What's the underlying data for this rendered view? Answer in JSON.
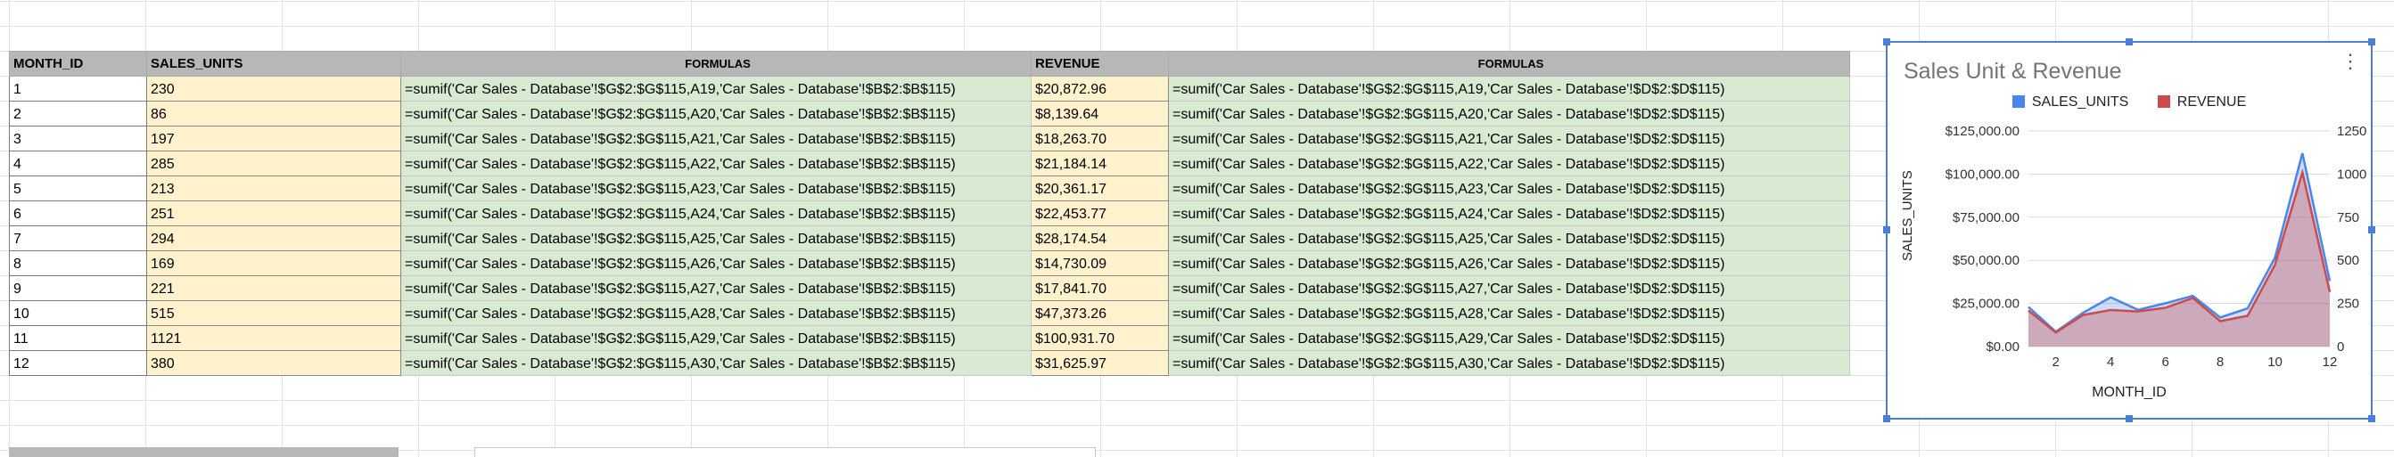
{
  "headers": {
    "month_id": "MONTH_ID",
    "sales_units": "SALES_UNITS",
    "formulas1": "FORMULAS",
    "revenue": "REVENUE",
    "formulas2": "FORMULAS"
  },
  "rows": [
    {
      "id": "1",
      "units": "230",
      "f1": "=sumif('Car Sales - Database'!$G$2:$G$115,A19,'Car Sales - Database'!$B$2:$B$115)",
      "rev": "$20,872.96",
      "f2": "=sumif('Car Sales - Database'!$G$2:$G$115,A19,'Car Sales - Database'!$D$2:$D$115)"
    },
    {
      "id": "2",
      "units": "86",
      "f1": "=sumif('Car Sales - Database'!$G$2:$G$115,A20,'Car Sales - Database'!$B$2:$B$115)",
      "rev": "$8,139.64",
      "f2": "=sumif('Car Sales - Database'!$G$2:$G$115,A20,'Car Sales - Database'!$D$2:$D$115)"
    },
    {
      "id": "3",
      "units": "197",
      "f1": "=sumif('Car Sales - Database'!$G$2:$G$115,A21,'Car Sales - Database'!$B$2:$B$115)",
      "rev": "$18,263.70",
      "f2": "=sumif('Car Sales - Database'!$G$2:$G$115,A21,'Car Sales - Database'!$D$2:$D$115)"
    },
    {
      "id": "4",
      "units": "285",
      "f1": "=sumif('Car Sales - Database'!$G$2:$G$115,A22,'Car Sales - Database'!$B$2:$B$115)",
      "rev": "$21,184.14",
      "f2": "=sumif('Car Sales - Database'!$G$2:$G$115,A22,'Car Sales - Database'!$D$2:$D$115)"
    },
    {
      "id": "5",
      "units": "213",
      "f1": "=sumif('Car Sales - Database'!$G$2:$G$115,A23,'Car Sales - Database'!$B$2:$B$115)",
      "rev": "$20,361.17",
      "f2": "=sumif('Car Sales - Database'!$G$2:$G$115,A23,'Car Sales - Database'!$D$2:$D$115)"
    },
    {
      "id": "6",
      "units": "251",
      "f1": "=sumif('Car Sales - Database'!$G$2:$G$115,A24,'Car Sales - Database'!$B$2:$B$115)",
      "rev": "$22,453.77",
      "f2": "=sumif('Car Sales - Database'!$G$2:$G$115,A24,'Car Sales - Database'!$D$2:$D$115)"
    },
    {
      "id": "7",
      "units": "294",
      "f1": "=sumif('Car Sales - Database'!$G$2:$G$115,A25,'Car Sales - Database'!$B$2:$B$115)",
      "rev": "$28,174.54",
      "f2": "=sumif('Car Sales - Database'!$G$2:$G$115,A25,'Car Sales - Database'!$D$2:$D$115)"
    },
    {
      "id": "8",
      "units": "169",
      "f1": "=sumif('Car Sales - Database'!$G$2:$G$115,A26,'Car Sales - Database'!$B$2:$B$115)",
      "rev": "$14,730.09",
      "f2": "=sumif('Car Sales - Database'!$G$2:$G$115,A26,'Car Sales - Database'!$D$2:$D$115)"
    },
    {
      "id": "9",
      "units": "221",
      "f1": "=sumif('Car Sales - Database'!$G$2:$G$115,A27,'Car Sales - Database'!$B$2:$B$115)",
      "rev": "$17,841.70",
      "f2": "=sumif('Car Sales - Database'!$G$2:$G$115,A27,'Car Sales - Database'!$D$2:$D$115)"
    },
    {
      "id": "10",
      "units": "515",
      "f1": "=sumif('Car Sales - Database'!$G$2:$G$115,A28,'Car Sales - Database'!$B$2:$B$115)",
      "rev": "$47,373.26",
      "f2": "=sumif('Car Sales - Database'!$G$2:$G$115,A28,'Car Sales - Database'!$D$2:$D$115)"
    },
    {
      "id": "11",
      "units": "1121",
      "f1": "=sumif('Car Sales - Database'!$G$2:$G$115,A29,'Car Sales - Database'!$B$2:$B$115)",
      "rev": "$100,931.70",
      "f2": "=sumif('Car Sales - Database'!$G$2:$G$115,A29,'Car Sales - Database'!$D$2:$D$115)"
    },
    {
      "id": "12",
      "units": "380",
      "f1": "=sumif('Car Sales - Database'!$G$2:$G$115,A30,'Car Sales - Database'!$B$2:$B$115)",
      "rev": "$31,625.97",
      "f2": "=sumif('Car Sales - Database'!$G$2:$G$115,A30,'Car Sales - Database'!$D$2:$D$115)"
    }
  ],
  "chart_menu_icon": "more-vert-icon",
  "chart_data": {
    "type": "area",
    "title": "Sales Unit & Revenue",
    "xlabel": "MONTH_ID",
    "ylabel": "SALES_UNITS",
    "x": [
      1,
      2,
      3,
      4,
      5,
      6,
      7,
      8,
      9,
      10,
      11,
      12
    ],
    "xticks": [
      "2",
      "4",
      "6",
      "8",
      "10",
      "12"
    ],
    "xlim": [
      1,
      12
    ],
    "legend_position": "top",
    "series": [
      {
        "name": "SALES_UNITS",
        "axis": "right",
        "color": "#4a86e8",
        "values": [
          230,
          86,
          197,
          285,
          213,
          251,
          294,
          169,
          221,
          515,
          1121,
          380
        ]
      },
      {
        "name": "REVENUE",
        "axis": "left",
        "color": "#cc4b4b",
        "values": [
          20872.96,
          8139.64,
          18263.7,
          21184.14,
          20361.17,
          22453.77,
          28174.54,
          14730.09,
          17841.7,
          47373.26,
          100931.7,
          31625.97
        ]
      }
    ],
    "left_axis": {
      "ylim": [
        0,
        125000
      ],
      "ticks": [
        "$0.00",
        "$25,000.00",
        "$50,000.00",
        "$75,000.00",
        "$100,000.00",
        "$125,000.00"
      ]
    },
    "right_axis": {
      "ylim": [
        0,
        1250
      ],
      "ticks": [
        "0",
        "250",
        "500",
        "750",
        "1000",
        "1250"
      ]
    },
    "grid": true
  }
}
